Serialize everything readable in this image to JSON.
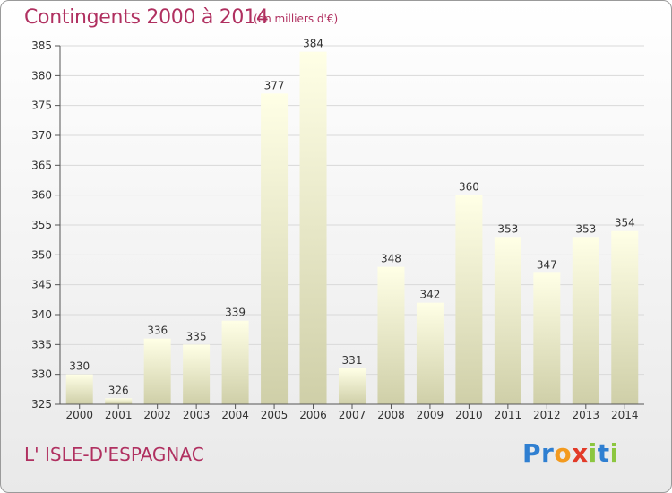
{
  "header": {
    "title": "Contingents 2000 à 2014",
    "subtitle": "(en milliers d'€)"
  },
  "footer": {
    "commune": "L' ISLE-D'ESPAGNAC",
    "logo": "Proxiti"
  },
  "colors": {
    "title": "#b03060",
    "bar_top": "#ffffe6",
    "bar_bottom": "#cfcfa8",
    "grid": "#d9d9d9",
    "axis": "#555555"
  },
  "chart_data": {
    "type": "bar",
    "title": "Contingents 2000 à 2014",
    "subtitle": "(en milliers d'€)",
    "categories": [
      "2000",
      "2001",
      "2002",
      "2003",
      "2004",
      "2005",
      "2006",
      "2007",
      "2008",
      "2009",
      "2010",
      "2011",
      "2012",
      "2013",
      "2014"
    ],
    "values": [
      330,
      326,
      336,
      335,
      339,
      377,
      384,
      331,
      348,
      342,
      360,
      353,
      347,
      353,
      354
    ],
    "ylim": [
      325,
      385
    ],
    "yticks": [
      325,
      330,
      335,
      340,
      345,
      350,
      355,
      360,
      365,
      370,
      375,
      380,
      385
    ],
    "grid": true,
    "xlabel": "",
    "ylabel": ""
  }
}
